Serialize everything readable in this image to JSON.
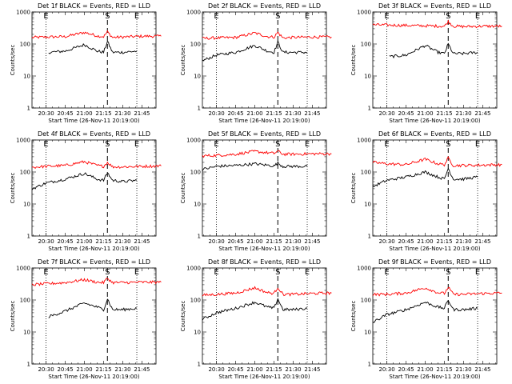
{
  "chart_data": [
    {
      "type": "line",
      "title": "Det 1f BLACK = Events, RED = LLD",
      "ylabel": "Counts/sec",
      "xlabel": "Start Time (26-Nov-11 20:19:00)",
      "x_ticks": [
        "20:30",
        "20:45",
        "21:00",
        "21:15",
        "21:30",
        "21:45"
      ],
      "y_scale": "log",
      "ylim": [
        1,
        1000
      ],
      "y_ticks": [
        "1",
        "10",
        "100",
        "1000"
      ],
      "markers": {
        "E_left": "20:30",
        "S": "21:18",
        "E_right": "21:41"
      },
      "series": [
        {
          "name": "LLD",
          "color": "#ff0000",
          "x": [
            "20:19",
            "20:30",
            "20:45",
            "21:00",
            "21:10",
            "21:15",
            "21:18",
            "21:22",
            "21:30",
            "21:45",
            "22:00"
          ],
          "y": [
            160,
            165,
            170,
            230,
            180,
            170,
            240,
            160,
            165,
            175,
            175
          ]
        },
        {
          "name": "Events",
          "color": "#000000",
          "x": [
            "20:32",
            "20:45",
            "21:00",
            "21:10",
            "21:15",
            "21:18",
            "21:22",
            "21:30",
            "21:41"
          ],
          "y": [
            55,
            60,
            95,
            60,
            55,
            120,
            55,
            55,
            60
          ]
        }
      ]
    },
    {
      "type": "line",
      "title": "Det 2f BLACK = Events, RED = LLD",
      "ylabel": "Counts/sec",
      "xlabel": "Start Time (26-Nov-11 20:19:00)",
      "x_ticks": [
        "20:30",
        "20:45",
        "21:00",
        "21:15",
        "21:30",
        "21:45"
      ],
      "y_scale": "log",
      "ylim": [
        1,
        1000
      ],
      "y_ticks": [
        "1",
        "10",
        "100",
        "1000"
      ],
      "markers": {
        "E_left": "20:30",
        "S": "21:18",
        "E_right": "21:41"
      },
      "series": [
        {
          "name": "LLD",
          "color": "#ff0000",
          "x": [
            "20:19",
            "20:30",
            "20:45",
            "21:00",
            "21:10",
            "21:15",
            "21:18",
            "21:22",
            "21:30",
            "21:45",
            "22:00"
          ],
          "y": [
            150,
            155,
            160,
            220,
            170,
            165,
            230,
            155,
            160,
            165,
            165
          ]
        },
        {
          "name": "Events",
          "color": "#000000",
          "x": [
            "20:19",
            "20:30",
            "20:45",
            "21:00",
            "21:10",
            "21:15",
            "21:18",
            "21:22",
            "21:30",
            "21:41"
          ],
          "y": [
            30,
            45,
            55,
            90,
            60,
            55,
            115,
            55,
            55,
            55
          ]
        }
      ]
    },
    {
      "type": "line",
      "title": "Det 3f BLACK = Events, RED = LLD",
      "ylabel": "Counts/sec",
      "xlabel": "Start Time (26-Nov-11 20:19:00)",
      "x_ticks": [
        "20:30",
        "20:45",
        "21:00",
        "21:15",
        "21:30",
        "21:45"
      ],
      "y_scale": "log",
      "ylim": [
        1,
        1000
      ],
      "y_ticks": [
        "1",
        "10",
        "100",
        "1000"
      ],
      "markers": {
        "E_left": "20:30",
        "S": "21:18",
        "E_right": "21:41"
      },
      "series": [
        {
          "name": "LLD",
          "color": "#ff0000",
          "x": [
            "20:19",
            "20:30",
            "20:45",
            "21:00",
            "21:15",
            "21:18",
            "21:22",
            "21:30",
            "21:45",
            "22:00"
          ],
          "y": [
            400,
            390,
            380,
            370,
            360,
            500,
            360,
            350,
            360,
            360
          ]
        },
        {
          "name": "Events",
          "color": "#000000",
          "x": [
            "20:32",
            "20:45",
            "21:00",
            "21:10",
            "21:15",
            "21:18",
            "21:22",
            "21:30",
            "21:41"
          ],
          "y": [
            40,
            45,
            90,
            55,
            50,
            100,
            50,
            50,
            55
          ]
        }
      ]
    },
    {
      "type": "line",
      "title": "Det 4f BLACK = Events, RED = LLD",
      "ylabel": "Counts/sec",
      "xlabel": "Start Time (26-Nov-11 20:19:00)",
      "x_ticks": [
        "20:30",
        "20:45",
        "21:00",
        "21:15",
        "21:30",
        "21:45"
      ],
      "y_scale": "log",
      "ylim": [
        1,
        1000
      ],
      "y_ticks": [
        "1",
        "10",
        "100",
        "1000"
      ],
      "markers": {
        "E_left": "20:30",
        "S": "21:18",
        "E_right": "21:41"
      },
      "series": [
        {
          "name": "LLD",
          "color": "#ff0000",
          "x": [
            "20:19",
            "20:30",
            "20:45",
            "21:00",
            "21:10",
            "21:15",
            "21:18",
            "21:22",
            "21:30",
            "21:45",
            "22:00"
          ],
          "y": [
            140,
            150,
            160,
            210,
            160,
            150,
            200,
            145,
            145,
            150,
            155
          ]
        },
        {
          "name": "Events",
          "color": "#000000",
          "x": [
            "20:19",
            "20:30",
            "20:45",
            "21:00",
            "21:10",
            "21:15",
            "21:18",
            "21:22",
            "21:30",
            "21:41"
          ],
          "y": [
            30,
            45,
            60,
            90,
            60,
            55,
            95,
            55,
            50,
            55
          ]
        }
      ]
    },
    {
      "type": "line",
      "title": "Det 5f BLACK = Events, RED = LLD",
      "ylabel": "Counts/sec",
      "xlabel": "Start Time (26-Nov-11 20:19:00)",
      "x_ticks": [
        "20:30",
        "20:45",
        "21:00",
        "21:15",
        "21:30",
        "21:45"
      ],
      "y_scale": "log",
      "ylim": [
        1,
        1000
      ],
      "y_ticks": [
        "1",
        "10",
        "100",
        "1000"
      ],
      "markers": {
        "E_left": "20:30",
        "S": "21:18",
        "E_right": "21:41"
      },
      "series": [
        {
          "name": "LLD",
          "color": "#ff0000",
          "x": [
            "20:19",
            "20:30",
            "20:45",
            "21:00",
            "21:15",
            "21:18",
            "21:22",
            "21:30",
            "21:45",
            "22:00"
          ],
          "y": [
            320,
            330,
            360,
            440,
            380,
            450,
            360,
            360,
            370,
            370
          ]
        },
        {
          "name": "Events",
          "color": "#000000",
          "x": [
            "20:19",
            "20:30",
            "20:45",
            "21:00",
            "21:15",
            "21:18",
            "21:22",
            "21:30",
            "21:41"
          ],
          "y": [
            120,
            150,
            160,
            180,
            155,
            190,
            150,
            150,
            150
          ]
        }
      ]
    },
    {
      "type": "line",
      "title": "Det 6f BLACK = Events, RED = LLD",
      "ylabel": "Counts/sec",
      "xlabel": "Start Time (26-Nov-11 20:19:00)",
      "x_ticks": [
        "20:30",
        "20:45",
        "21:00",
        "21:15",
        "21:30",
        "21:45"
      ],
      "y_scale": "log",
      "ylim": [
        1,
        1000
      ],
      "y_ticks": [
        "1",
        "10",
        "100",
        "1000"
      ],
      "markers": {
        "E_left": "20:30",
        "S": "21:18",
        "E_right": "21:41"
      },
      "series": [
        {
          "name": "LLD",
          "color": "#ff0000",
          "x": [
            "20:19",
            "20:30",
            "20:45",
            "21:00",
            "21:10",
            "21:15",
            "21:18",
            "21:22",
            "21:30",
            "21:45",
            "22:00"
          ],
          "y": [
            200,
            180,
            170,
            250,
            180,
            170,
            270,
            160,
            160,
            165,
            170
          ]
        },
        {
          "name": "Events",
          "color": "#000000",
          "x": [
            "20:19",
            "20:30",
            "20:45",
            "21:00",
            "21:10",
            "21:15",
            "21:18",
            "21:22",
            "21:30",
            "21:41"
          ],
          "y": [
            35,
            55,
            70,
            100,
            70,
            60,
            130,
            60,
            60,
            70
          ]
        }
      ]
    },
    {
      "type": "line",
      "title": "Det 7f BLACK = Events, RED = LLD",
      "ylabel": "Counts/sec",
      "xlabel": "Start Time (26-Nov-11 20:19:00)",
      "x_ticks": [
        "20:30",
        "20:45",
        "21:00",
        "21:15",
        "21:30",
        "21:45"
      ],
      "y_scale": "log",
      "ylim": [
        1,
        1000
      ],
      "y_ticks": [
        "1",
        "10",
        "100",
        "1000"
      ],
      "markers": {
        "E_left": "20:30",
        "S": "21:18",
        "E_right": "21:41"
      },
      "series": [
        {
          "name": "LLD",
          "color": "#ff0000",
          "x": [
            "20:19",
            "20:30",
            "20:45",
            "21:00",
            "21:10",
            "21:15",
            "21:18",
            "21:22",
            "21:30",
            "21:45",
            "22:00"
          ],
          "y": [
            300,
            320,
            350,
            430,
            360,
            350,
            480,
            350,
            350,
            360,
            360
          ]
        },
        {
          "name": "Events",
          "color": "#000000",
          "x": [
            "20:32",
            "20:45",
            "21:00",
            "21:10",
            "21:15",
            "21:18",
            "21:22",
            "21:30",
            "21:41"
          ],
          "y": [
            30,
            45,
            80,
            60,
            50,
            110,
            50,
            50,
            55
          ]
        }
      ]
    },
    {
      "type": "line",
      "title": "Det 8f BLACK = Events, RED = LLD",
      "ylabel": "Counts/sec",
      "xlabel": "Start Time (26-Nov-11 20:19:00)",
      "x_ticks": [
        "20:30",
        "20:45",
        "21:00",
        "21:15",
        "21:30",
        "21:45"
      ],
      "y_scale": "log",
      "ylim": [
        1,
        1000
      ],
      "y_ticks": [
        "1",
        "10",
        "100",
        "1000"
      ],
      "markers": {
        "E_left": "20:30",
        "S": "21:18",
        "E_right": "21:41"
      },
      "series": [
        {
          "name": "LLD",
          "color": "#ff0000",
          "x": [
            "20:19",
            "20:30",
            "20:45",
            "21:00",
            "21:10",
            "21:15",
            "21:18",
            "21:22",
            "21:30",
            "21:45",
            "22:00"
          ],
          "y": [
            140,
            150,
            165,
            240,
            170,
            160,
            250,
            150,
            150,
            160,
            165
          ]
        },
        {
          "name": "Events",
          "color": "#000000",
          "x": [
            "20:19",
            "20:30",
            "20:45",
            "21:00",
            "21:10",
            "21:15",
            "21:18",
            "21:22",
            "21:30",
            "21:41"
          ],
          "y": [
            25,
            40,
            55,
            85,
            60,
            55,
            110,
            50,
            50,
            55
          ]
        }
      ]
    },
    {
      "type": "line",
      "title": "Det 9f BLACK = Events, RED = LLD",
      "ylabel": "Counts/sec",
      "xlabel": "Start Time (26-Nov-11 20:19:00)",
      "x_ticks": [
        "20:30",
        "20:45",
        "21:00",
        "21:15",
        "21:30",
        "21:45"
      ],
      "y_scale": "log",
      "ylim": [
        1,
        1000
      ],
      "y_ticks": [
        "1",
        "10",
        "100",
        "1000"
      ],
      "markers": {
        "E_left": "20:30",
        "S": "21:18",
        "E_right": "21:41"
      },
      "series": [
        {
          "name": "LLD",
          "color": "#ff0000",
          "x": [
            "20:19",
            "20:30",
            "20:45",
            "21:00",
            "21:10",
            "21:15",
            "21:18",
            "21:22",
            "21:30",
            "21:45",
            "22:00"
          ],
          "y": [
            150,
            150,
            165,
            240,
            170,
            160,
            250,
            150,
            150,
            160,
            165
          ]
        },
        {
          "name": "Events",
          "color": "#000000",
          "x": [
            "20:19",
            "20:30",
            "20:45",
            "21:00",
            "21:10",
            "21:15",
            "21:18",
            "21:22",
            "21:30",
            "21:41"
          ],
          "y": [
            20,
            35,
            50,
            85,
            60,
            55,
            100,
            50,
            50,
            55
          ]
        }
      ]
    }
  ]
}
